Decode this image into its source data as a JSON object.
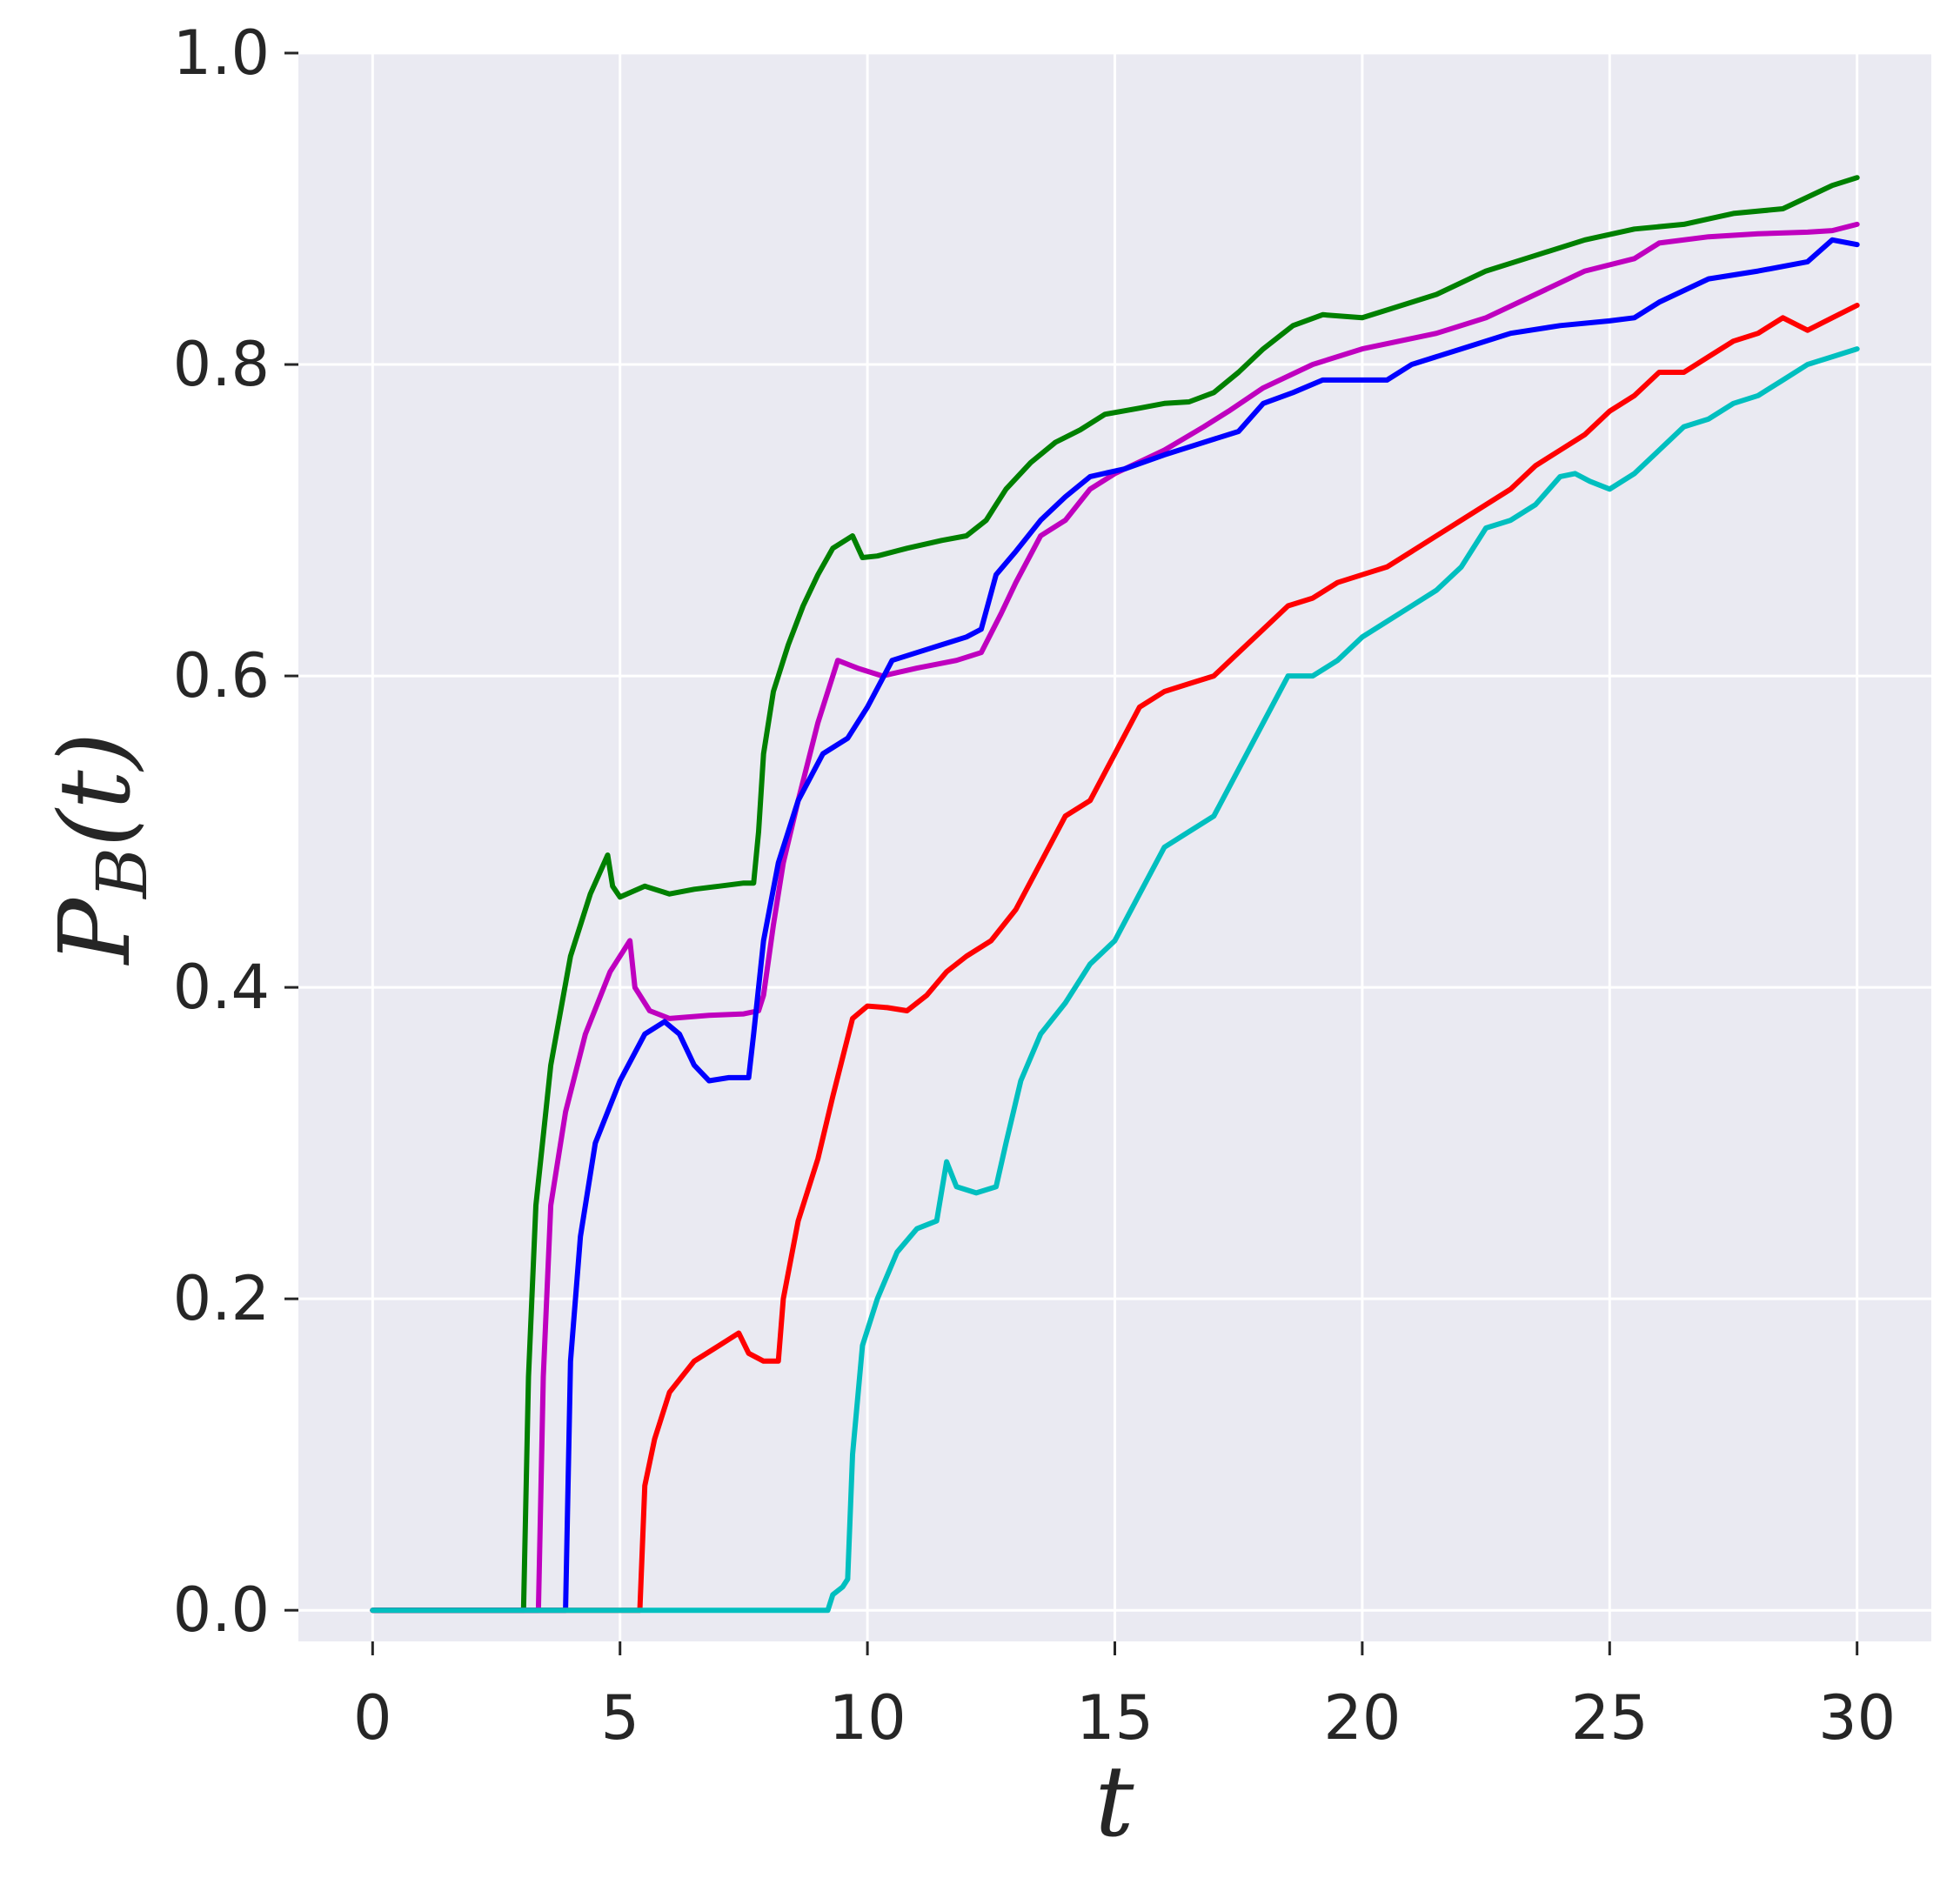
{
  "chart_data": {
    "type": "line",
    "xlabel": "t",
    "ylabel": {
      "main": "P",
      "sub": "B",
      "arg": "(t)"
    },
    "xlim": [
      -1.5,
      31.5
    ],
    "ylim": [
      -0.02,
      1.0
    ],
    "xticks": [
      0,
      5,
      10,
      15,
      20,
      25,
      30
    ],
    "yticks": [
      0.0,
      0.2,
      0.4,
      0.6,
      0.8,
      1.0
    ],
    "xtick_labels": [
      "0",
      "5",
      "10",
      "15",
      "20",
      "25",
      "30"
    ],
    "ytick_labels": [
      "0.0",
      "0.2",
      "0.4",
      "0.6",
      "0.8",
      "1.0"
    ],
    "grid": true,
    "background_color": "#EAEAF2",
    "series": [
      {
        "color": "#008000",
        "points": [
          [
            0,
            0
          ],
          [
            3.05,
            0
          ],
          [
            3.15,
            0.15
          ],
          [
            3.3,
            0.26
          ],
          [
            3.6,
            0.35
          ],
          [
            4.0,
            0.42
          ],
          [
            4.4,
            0.46
          ],
          [
            4.75,
            0.485
          ],
          [
            4.85,
            0.465
          ],
          [
            5.0,
            0.458
          ],
          [
            5.5,
            0.465
          ],
          [
            6.0,
            0.46
          ],
          [
            6.5,
            0.463
          ],
          [
            7.0,
            0.465
          ],
          [
            7.5,
            0.467
          ],
          [
            7.7,
            0.467
          ],
          [
            7.8,
            0.5
          ],
          [
            7.9,
            0.55
          ],
          [
            8.1,
            0.59
          ],
          [
            8.4,
            0.62
          ],
          [
            8.7,
            0.645
          ],
          [
            9.0,
            0.665
          ],
          [
            9.3,
            0.682
          ],
          [
            9.7,
            0.69
          ],
          [
            9.9,
            0.676
          ],
          [
            10.2,
            0.677
          ],
          [
            10.8,
            0.682
          ],
          [
            11.5,
            0.687
          ],
          [
            12.0,
            0.69
          ],
          [
            12.4,
            0.7
          ],
          [
            12.8,
            0.72
          ],
          [
            13.3,
            0.737
          ],
          [
            13.8,
            0.75
          ],
          [
            14.3,
            0.758
          ],
          [
            14.8,
            0.768
          ],
          [
            15.5,
            0.772
          ],
          [
            16.0,
            0.775
          ],
          [
            16.5,
            0.776
          ],
          [
            17.0,
            0.782
          ],
          [
            17.5,
            0.795
          ],
          [
            18.0,
            0.81
          ],
          [
            18.6,
            0.825
          ],
          [
            19.2,
            0.832
          ],
          [
            20.0,
            0.83
          ],
          [
            20.5,
            0.835
          ],
          [
            21.5,
            0.845
          ],
          [
            22.5,
            0.86
          ],
          [
            23.5,
            0.87
          ],
          [
            24.5,
            0.88
          ],
          [
            25.5,
            0.887
          ],
          [
            26.5,
            0.89
          ],
          [
            27.5,
            0.897
          ],
          [
            28.5,
            0.9
          ],
          [
            29.5,
            0.915
          ],
          [
            30.0,
            0.92
          ]
        ]
      },
      {
        "color": "#BF00BF",
        "points": [
          [
            0,
            0
          ],
          [
            3.35,
            0
          ],
          [
            3.45,
            0.15
          ],
          [
            3.6,
            0.26
          ],
          [
            3.9,
            0.32
          ],
          [
            4.3,
            0.37
          ],
          [
            4.8,
            0.41
          ],
          [
            5.2,
            0.43
          ],
          [
            5.3,
            0.4
          ],
          [
            5.6,
            0.385
          ],
          [
            6.0,
            0.38
          ],
          [
            6.8,
            0.382
          ],
          [
            7.5,
            0.383
          ],
          [
            7.8,
            0.385
          ],
          [
            7.9,
            0.395
          ],
          [
            8.1,
            0.44
          ],
          [
            8.3,
            0.48
          ],
          [
            8.6,
            0.52
          ],
          [
            9.0,
            0.57
          ],
          [
            9.4,
            0.61
          ],
          [
            9.8,
            0.605
          ],
          [
            10.3,
            0.6
          ],
          [
            11.0,
            0.605
          ],
          [
            11.8,
            0.61
          ],
          [
            12.3,
            0.615
          ],
          [
            12.7,
            0.64
          ],
          [
            13.0,
            0.66
          ],
          [
            13.5,
            0.69
          ],
          [
            14.0,
            0.7
          ],
          [
            14.5,
            0.72
          ],
          [
            15.0,
            0.73
          ],
          [
            16.0,
            0.745
          ],
          [
            16.8,
            0.76
          ],
          [
            17.3,
            0.77
          ],
          [
            18.0,
            0.785
          ],
          [
            19.0,
            0.8
          ],
          [
            20.0,
            0.81
          ],
          [
            21.5,
            0.82
          ],
          [
            22.5,
            0.83
          ],
          [
            23.5,
            0.845
          ],
          [
            24.5,
            0.86
          ],
          [
            25.5,
            0.868
          ],
          [
            26.0,
            0.878
          ],
          [
            27.0,
            0.882
          ],
          [
            28.0,
            0.884
          ],
          [
            29.0,
            0.885
          ],
          [
            29.5,
            0.886
          ],
          [
            30.0,
            0.89
          ]
        ]
      },
      {
        "color": "#0000FF",
        "points": [
          [
            0,
            0
          ],
          [
            3.9,
            0
          ],
          [
            4.0,
            0.16
          ],
          [
            4.2,
            0.24
          ],
          [
            4.5,
            0.3
          ],
          [
            5.0,
            0.34
          ],
          [
            5.5,
            0.37
          ],
          [
            5.9,
            0.378
          ],
          [
            6.2,
            0.37
          ],
          [
            6.5,
            0.35
          ],
          [
            6.8,
            0.34
          ],
          [
            7.2,
            0.342
          ],
          [
            7.6,
            0.342
          ],
          [
            7.7,
            0.37
          ],
          [
            7.9,
            0.43
          ],
          [
            8.2,
            0.48
          ],
          [
            8.6,
            0.52
          ],
          [
            9.1,
            0.55
          ],
          [
            9.6,
            0.56
          ],
          [
            10.0,
            0.58
          ],
          [
            10.5,
            0.61
          ],
          [
            11.0,
            0.615
          ],
          [
            11.5,
            0.62
          ],
          [
            12.0,
            0.625
          ],
          [
            12.3,
            0.63
          ],
          [
            12.6,
            0.665
          ],
          [
            13.0,
            0.68
          ],
          [
            13.5,
            0.7
          ],
          [
            14.0,
            0.715
          ],
          [
            14.5,
            0.728
          ],
          [
            15.2,
            0.733
          ],
          [
            16.0,
            0.742
          ],
          [
            16.8,
            0.75
          ],
          [
            17.5,
            0.757
          ],
          [
            18.0,
            0.775
          ],
          [
            18.6,
            0.782
          ],
          [
            19.2,
            0.79
          ],
          [
            20.0,
            0.79
          ],
          [
            20.5,
            0.79
          ],
          [
            21.0,
            0.8
          ],
          [
            22.0,
            0.81
          ],
          [
            23.0,
            0.82
          ],
          [
            24.0,
            0.825
          ],
          [
            25.0,
            0.828
          ],
          [
            25.5,
            0.83
          ],
          [
            26.0,
            0.84
          ],
          [
            27.0,
            0.855
          ],
          [
            28.0,
            0.86
          ],
          [
            29.0,
            0.866
          ],
          [
            29.5,
            0.88
          ],
          [
            30.0,
            0.877
          ]
        ]
      },
      {
        "color": "#FF0000",
        "points": [
          [
            0,
            0
          ],
          [
            5.4,
            0
          ],
          [
            5.5,
            0.08
          ],
          [
            5.7,
            0.11
          ],
          [
            6.0,
            0.14
          ],
          [
            6.5,
            0.16
          ],
          [
            7.0,
            0.17
          ],
          [
            7.4,
            0.178
          ],
          [
            7.6,
            0.165
          ],
          [
            7.9,
            0.16
          ],
          [
            8.2,
            0.16
          ],
          [
            8.3,
            0.2
          ],
          [
            8.6,
            0.25
          ],
          [
            9.0,
            0.29
          ],
          [
            9.3,
            0.33
          ],
          [
            9.7,
            0.38
          ],
          [
            10.0,
            0.388
          ],
          [
            10.4,
            0.387
          ],
          [
            10.8,
            0.385
          ],
          [
            11.2,
            0.395
          ],
          [
            11.6,
            0.41
          ],
          [
            12.0,
            0.42
          ],
          [
            12.5,
            0.43
          ],
          [
            13.0,
            0.45
          ],
          [
            13.5,
            0.48
          ],
          [
            14.0,
            0.51
          ],
          [
            14.5,
            0.52
          ],
          [
            15.0,
            0.55
          ],
          [
            15.5,
            0.58
          ],
          [
            16.0,
            0.59
          ],
          [
            16.5,
            0.595
          ],
          [
            17.0,
            0.6
          ],
          [
            17.5,
            0.615
          ],
          [
            18.0,
            0.63
          ],
          [
            18.5,
            0.645
          ],
          [
            19.0,
            0.65
          ],
          [
            19.5,
            0.66
          ],
          [
            20.0,
            0.665
          ],
          [
            20.5,
            0.67
          ],
          [
            21.0,
            0.68
          ],
          [
            21.5,
            0.69
          ],
          [
            22.0,
            0.7
          ],
          [
            22.5,
            0.71
          ],
          [
            23.0,
            0.72
          ],
          [
            23.5,
            0.735
          ],
          [
            24.0,
            0.745
          ],
          [
            24.5,
            0.755
          ],
          [
            25.0,
            0.77
          ],
          [
            25.5,
            0.78
          ],
          [
            26.0,
            0.795
          ],
          [
            26.5,
            0.795
          ],
          [
            27.0,
            0.805
          ],
          [
            27.5,
            0.815
          ],
          [
            28.0,
            0.82
          ],
          [
            28.5,
            0.83
          ],
          [
            29.0,
            0.822
          ],
          [
            29.5,
            0.83
          ],
          [
            30.0,
            0.838
          ]
        ]
      },
      {
        "color": "#00BFBF",
        "points": [
          [
            0,
            0
          ],
          [
            9.2,
            0
          ],
          [
            9.3,
            0.01
          ],
          [
            9.5,
            0.015
          ],
          [
            9.6,
            0.02
          ],
          [
            9.7,
            0.1
          ],
          [
            9.9,
            0.17
          ],
          [
            10.2,
            0.2
          ],
          [
            10.6,
            0.23
          ],
          [
            11.0,
            0.245
          ],
          [
            11.4,
            0.25
          ],
          [
            11.6,
            0.288
          ],
          [
            11.8,
            0.272
          ],
          [
            12.2,
            0.268
          ],
          [
            12.6,
            0.272
          ],
          [
            12.8,
            0.3
          ],
          [
            13.1,
            0.34
          ],
          [
            13.5,
            0.37
          ],
          [
            14.0,
            0.39
          ],
          [
            14.5,
            0.415
          ],
          [
            15.0,
            0.43
          ],
          [
            15.5,
            0.46
          ],
          [
            16.0,
            0.49
          ],
          [
            16.5,
            0.5
          ],
          [
            17.0,
            0.51
          ],
          [
            17.5,
            0.54
          ],
          [
            18.0,
            0.57
          ],
          [
            18.5,
            0.6
          ],
          [
            19.0,
            0.6
          ],
          [
            19.5,
            0.61
          ],
          [
            20.0,
            0.625
          ],
          [
            20.5,
            0.635
          ],
          [
            21.0,
            0.645
          ],
          [
            21.5,
            0.655
          ],
          [
            22.0,
            0.67
          ],
          [
            22.5,
            0.695
          ],
          [
            23.0,
            0.7
          ],
          [
            23.5,
            0.71
          ],
          [
            24.0,
            0.728
          ],
          [
            24.3,
            0.73
          ],
          [
            24.6,
            0.725
          ],
          [
            25.0,
            0.72
          ],
          [
            25.5,
            0.73
          ],
          [
            26.0,
            0.745
          ],
          [
            26.5,
            0.76
          ],
          [
            27.0,
            0.765
          ],
          [
            27.5,
            0.775
          ],
          [
            28.0,
            0.78
          ],
          [
            28.5,
            0.79
          ],
          [
            29.0,
            0.8
          ],
          [
            29.5,
            0.805
          ],
          [
            30.0,
            0.81
          ]
        ]
      }
    ]
  }
}
